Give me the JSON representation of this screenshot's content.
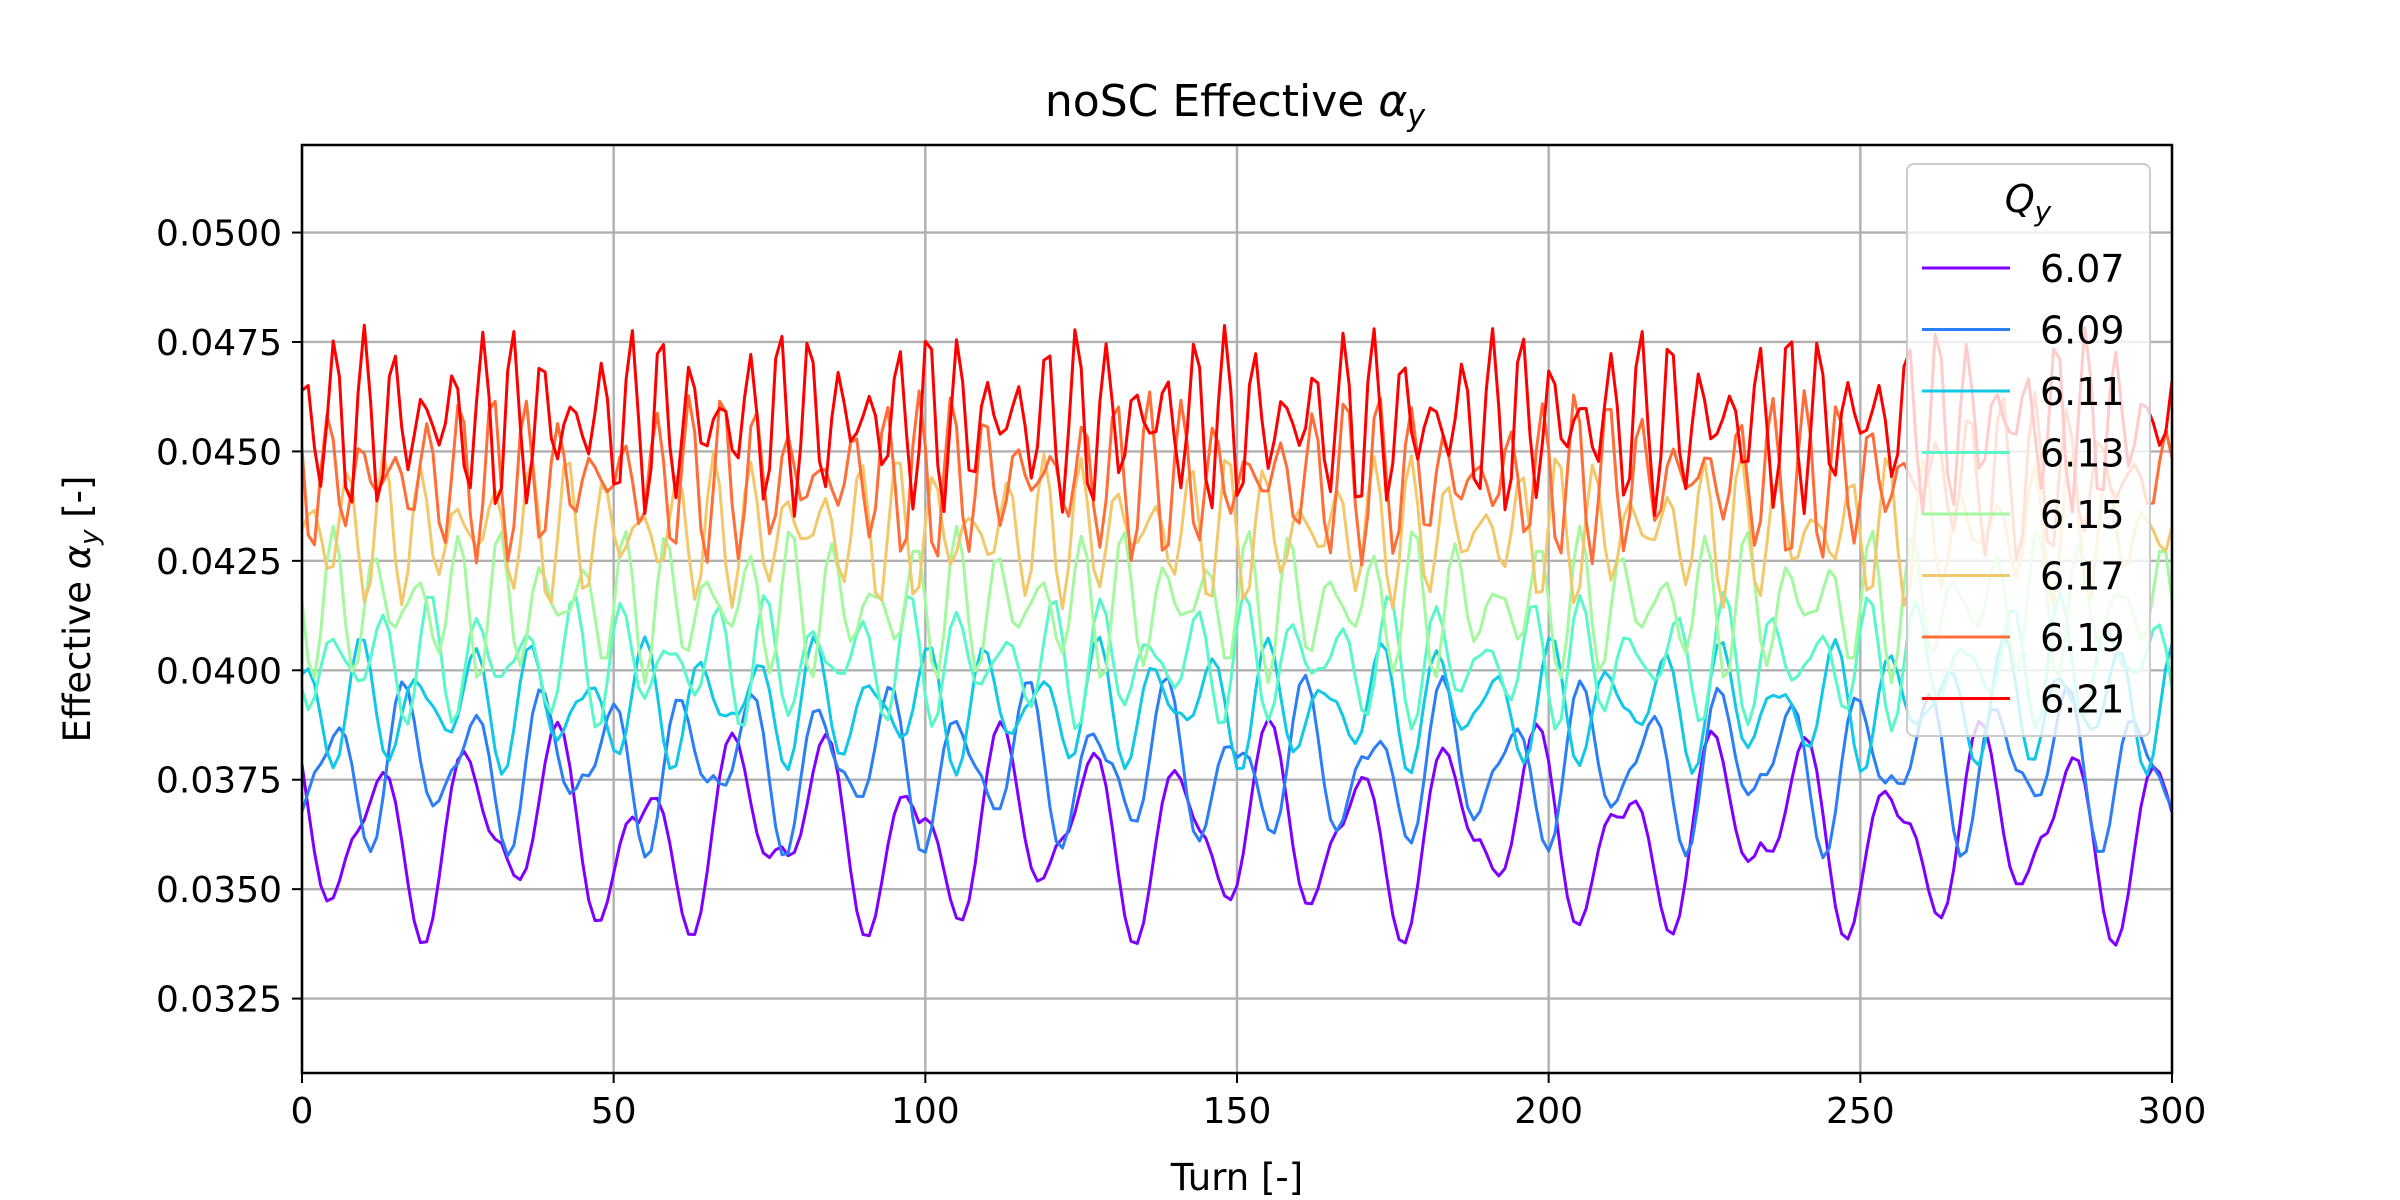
{
  "chart_data": {
    "type": "line",
    "title": "noSC Effective α_y",
    "title_main": "noSC Effective ",
    "title_symbol": "α",
    "title_sub": "y",
    "xlabel": "Turn [-]",
    "ylabel_main": "Effective ",
    "ylabel_symbol": "α",
    "ylabel_sub": "y",
    "ylabel_unit": " [-]",
    "xlim": [
      0,
      300
    ],
    "ylim": [
      0.0308,
      0.052
    ],
    "xticks": [
      0,
      50,
      100,
      150,
      200,
      250,
      300
    ],
    "xtick_labels": [
      "0",
      "50",
      "100",
      "150",
      "200",
      "250",
      "300"
    ],
    "yticks": [
      0.0325,
      0.035,
      0.0375,
      0.04,
      0.0425,
      0.045,
      0.0475,
      0.05
    ],
    "ytick_labels": [
      "0.0325",
      "0.0350",
      "0.0375",
      "0.0400",
      "0.0425",
      "0.0450",
      "0.0475",
      "0.0500"
    ],
    "grid": true,
    "legend": {
      "title_symbol": "Q",
      "title_sub": "y",
      "placement": "upper-right"
    },
    "series": [
      {
        "name": "6.07",
        "color": "#8000ff",
        "mean": 0.0363,
        "amp": 0.0026,
        "tune": 0.07,
        "beat": 22.5,
        "phase": 0.3
      },
      {
        "name": "6.09",
        "color": "#2c7ef7",
        "mean": 0.0378,
        "amp": 0.0021,
        "tune": 0.09,
        "beat": 21.0,
        "phase": 1.1
      },
      {
        "name": "6.11",
        "color": "#12c8e6",
        "mean": 0.0392,
        "amp": 0.0016,
        "tune": 0.11,
        "beat": 24.0,
        "phase": 2.0
      },
      {
        "name": "6.13",
        "color": "#5af8c8",
        "mean": 0.0402,
        "amp": 0.0016,
        "tune": 0.13,
        "beat": 26.0,
        "phase": 0.7
      },
      {
        "name": "6.15",
        "color": "#a4f89f",
        "mean": 0.0415,
        "amp": 0.0018,
        "tune": 0.15,
        "beat": 25.0,
        "phase": 2.6
      },
      {
        "name": "6.17",
        "color": "#f2c86c",
        "mean": 0.0432,
        "amp": 0.0018,
        "tune": 0.17,
        "beat": 27.0,
        "phase": 1.6
      },
      {
        "name": "6.19",
        "color": "#ff6e38",
        "mean": 0.0444,
        "amp": 0.002,
        "tune": 0.19,
        "beat": 35.0,
        "phase": 0.4
      },
      {
        "name": "6.21",
        "color": "#ff0000",
        "mean": 0.0457,
        "amp": 0.0022,
        "tune": 0.21,
        "beat": 23.0,
        "phase": 1.9
      }
    ]
  }
}
